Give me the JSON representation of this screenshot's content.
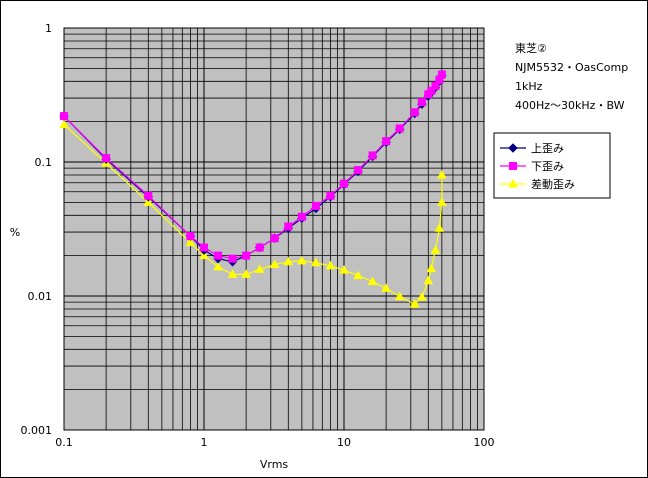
{
  "chart_data": {
    "type": "line",
    "title": "",
    "xlabel": "Vrms",
    "ylabel": "%",
    "x_scale": "log",
    "y_scale": "log",
    "xlim": [
      0.1,
      100
    ],
    "ylim": [
      0.001,
      1
    ],
    "x_ticks": [
      "0.1",
      "1",
      "10",
      "100"
    ],
    "y_ticks": [
      "1",
      "0.1",
      "0.01",
      "0.001"
    ],
    "grid": true,
    "notes": [
      "東芝②",
      "NJM5532・OasComp",
      "1kHz",
      "400Hz〜30kHz・BW"
    ],
    "legend_position": "right",
    "series": [
      {
        "name": "上歪み",
        "color": "#000080",
        "marker": "diamond",
        "x": [
          0.1,
          0.2,
          0.4,
          0.8,
          1.0,
          1.26,
          1.6,
          2.0,
          2.5,
          3.2,
          4.0,
          5.0,
          6.3,
          8.0,
          10,
          12.6,
          16,
          20,
          25,
          32,
          36,
          40,
          42,
          45,
          48,
          50
        ],
        "y": [
          0.22,
          0.105,
          0.055,
          0.028,
          0.022,
          0.019,
          0.018,
          0.02,
          0.023,
          0.027,
          0.032,
          0.038,
          0.045,
          0.055,
          0.068,
          0.085,
          0.11,
          0.14,
          0.175,
          0.23,
          0.27,
          0.31,
          0.33,
          0.36,
          0.4,
          0.44
        ]
      },
      {
        "name": "下歪み",
        "color": "#ff00ff",
        "marker": "square",
        "x": [
          0.1,
          0.2,
          0.4,
          0.8,
          1.0,
          1.26,
          1.6,
          2.0,
          2.5,
          3.2,
          4.0,
          5.0,
          6.3,
          8.0,
          10,
          12.6,
          16,
          20,
          25,
          32,
          36,
          40,
          42,
          45,
          48,
          50
        ],
        "y": [
          0.22,
          0.107,
          0.056,
          0.028,
          0.023,
          0.02,
          0.019,
          0.02,
          0.023,
          0.027,
          0.033,
          0.039,
          0.047,
          0.056,
          0.069,
          0.087,
          0.112,
          0.143,
          0.178,
          0.235,
          0.28,
          0.32,
          0.34,
          0.37,
          0.41,
          0.45
        ]
      },
      {
        "name": "差動歪み",
        "color": "#ffff00",
        "marker": "triangle",
        "x": [
          0.1,
          0.2,
          0.4,
          0.8,
          1.0,
          1.26,
          1.6,
          2.0,
          2.5,
          3.2,
          4.0,
          5.0,
          6.3,
          8.0,
          10,
          12.6,
          16,
          20,
          25,
          32,
          36,
          40,
          42,
          45,
          48,
          50
        ],
        "y": [
          0.19,
          0.098,
          0.05,
          0.025,
          0.02,
          0.0165,
          0.0145,
          0.0145,
          0.0158,
          0.0172,
          0.018,
          0.0183,
          0.0177,
          0.0168,
          0.0156,
          0.0142,
          0.0128,
          0.0114,
          0.0099,
          0.0087,
          0.0098,
          0.013,
          0.016,
          0.022,
          0.032,
          0.05
        ]
      }
    ],
    "series_extra_point": {
      "x": 50,
      "y": 0.08
    }
  }
}
